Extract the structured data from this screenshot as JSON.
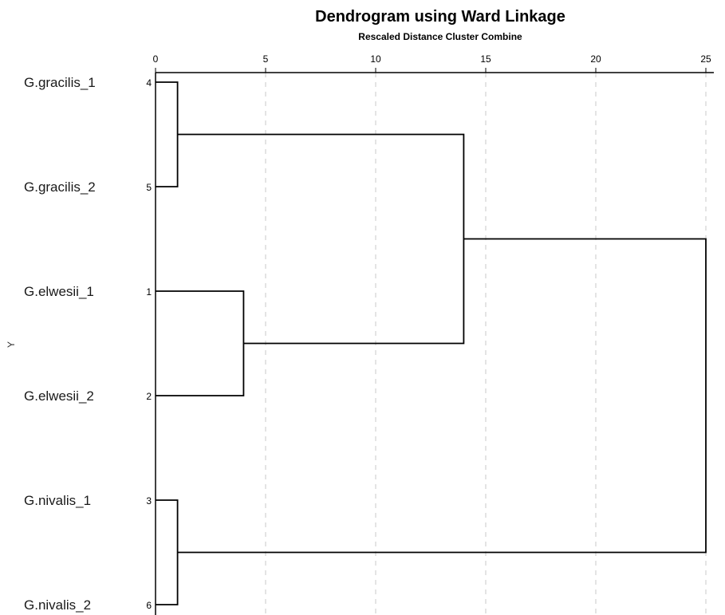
{
  "chart_data": {
    "type": "dendrogram",
    "title": "Dendrogram using Ward Linkage",
    "subtitle": "Rescaled Distance Cluster Combine",
    "ylabel": "Y",
    "xlim": [
      0,
      25
    ],
    "xticks": [
      0,
      5,
      10,
      15,
      20,
      25
    ],
    "grid": true,
    "leaves": [
      {
        "label": "G.gracilis_1",
        "id": "4"
      },
      {
        "label": "G.gracilis_2",
        "id": "5"
      },
      {
        "label": "G.elwesii_1",
        "id": "1"
      },
      {
        "label": "G.elwesii_2",
        "id": "2"
      },
      {
        "label": "G.nivalis_1",
        "id": "3"
      },
      {
        "label": "G.nivalis_2",
        "id": "6"
      }
    ],
    "merges": [
      {
        "left": "L0",
        "right": "L1",
        "distance": 1
      },
      {
        "left": "L4",
        "right": "L5",
        "distance": 1
      },
      {
        "left": "L2",
        "right": "L3",
        "distance": 4
      },
      {
        "left": "M0",
        "right": "M2",
        "distance": 14
      },
      {
        "left": "M3",
        "right": "M1",
        "distance": 25
      }
    ]
  }
}
